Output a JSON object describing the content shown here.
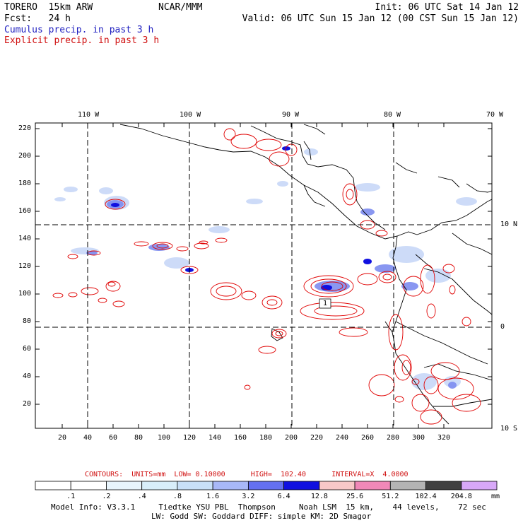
{
  "header": {
    "model": "TORERO  15km ARW",
    "org": "NCAR/MMM",
    "init": "Init: 06 UTC Sat 14 Jan 12",
    "fcst": "Fcst:   24 h",
    "valid": "Valid: 06 UTC Sun 15 Jan 12 (00 CST Sun 15 Jan 12)",
    "field1": "Cumulus precip. in past 3 h",
    "field2": "Explicit precip. in past 3 h"
  },
  "map": {
    "lon_labels": [
      "110 W",
      "100 W",
      "90 W",
      "80 W",
      "70 W"
    ],
    "lat_labels": [
      "10 N",
      "0",
      "10 S"
    ],
    "y_ticks": [
      "220",
      "200",
      "180",
      "160",
      "140",
      "120",
      "100",
      "80",
      "60",
      "40",
      "20"
    ],
    "x_ticks": [
      "20",
      "40",
      "60",
      "80",
      "100",
      "120",
      "140",
      "160",
      "180",
      "200",
      "220",
      "240",
      "260",
      "280",
      "300",
      "320"
    ],
    "center_label": "1",
    "colors": {
      "coast": "#000000",
      "contour": "#e00000",
      "precip_light": "#c8d8f8",
      "precip_mid": "#7d8cf0",
      "precip_dark": "#1010e0"
    }
  },
  "contour_info": {
    "text": "CONTOURS:  UNITS=mm  LOW= 0.10000      HIGH=  102.40      INTERVAL=X  4.0000"
  },
  "colorbar": {
    "labels": [
      ".1",
      ".2",
      ".4",
      ".8",
      "1.6",
      "3.2",
      "6.4",
      "12.8",
      "25.6",
      "51.2",
      "102.4",
      "204.8"
    ],
    "unit": "mm",
    "colors": [
      "#ffffff",
      "#ffffff",
      "#e8f4fc",
      "#d8eefa",
      "#c8e0f8",
      "#a8b8f8",
      "#6470f0",
      "#1010e0",
      "#f8c8c8",
      "#f088b8",
      "#b4b4b4",
      "#404040",
      "#d8a8f8"
    ]
  },
  "footer": {
    "line1": "Model Info: V3.3.1     Tiedtke YSU PBL  Thompson     Noah LSM  15 km,    44 levels,    72 sec",
    "line2": "LW: Godd SW: Goddard DIFF: simple KM: 2D Smagor"
  }
}
